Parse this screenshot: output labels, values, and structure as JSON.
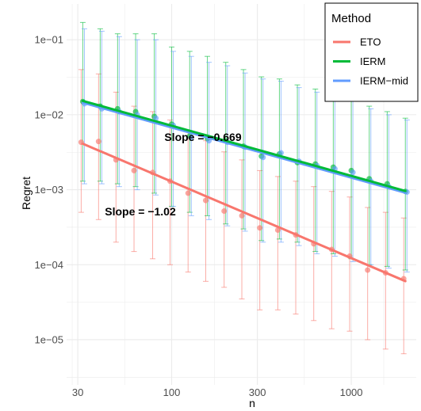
{
  "chart_data": {
    "type": "scatter",
    "xlabel": "n",
    "ylabel": "Regret",
    "x_scale": "log10",
    "y_scale": "log10",
    "xlim": [
      26,
      2300
    ],
    "ylim": [
      2.5e-06,
      0.3
    ],
    "x_ticks": [
      30,
      100,
      300,
      1000
    ],
    "x_tick_labels": [
      "30",
      "100",
      "300",
      "1000"
    ],
    "y_ticks": [
      1e-05,
      0.0001,
      0.001,
      0.01,
      0.1
    ],
    "y_tick_labels": [
      "1e−05",
      "1e−04",
      "1e−03",
      "1e−02",
      "1e−01"
    ],
    "grid": true,
    "legend": {
      "title": "Method",
      "position": "top-right"
    },
    "x": [
      32,
      40,
      50,
      63,
      80,
      100,
      126,
      158,
      200,
      251,
      316,
      398,
      501,
      631,
      794,
      1000,
      1259,
      1585,
      2000
    ],
    "series": [
      {
        "name": "ETO",
        "color": "#F8766D",
        "dodge": -0.009,
        "values": [
          0.0043,
          0.0044,
          0.0025,
          0.0018,
          0.0017,
          0.0013,
          0.0009,
          0.00072,
          0.00052,
          0.00045,
          0.00031,
          0.00029,
          0.00025,
          0.00019,
          0.00016,
          0.00013,
          8.5e-05,
          7.8e-05,
          6.5e-05
        ],
        "upper": [
          0.04,
          0.035,
          0.02,
          0.013,
          0.011,
          0.0085,
          0.006,
          0.0045,
          0.0032,
          0.0025,
          0.0018,
          0.0015,
          0.0013,
          0.0011,
          0.00095,
          0.0008,
          0.00058,
          0.0005,
          0.00042
        ],
        "lower": [
          0.0005,
          0.0004,
          0.0002,
          0.00015,
          0.00012,
          0.0001,
          8e-05,
          6e-05,
          5e-05,
          3.5e-05,
          2.5e-05,
          2.5e-05,
          2.2e-05,
          1.8e-05,
          1.4e-05,
          1.3e-05,
          1e-05,
          7.5e-06,
          6.5e-06
        ],
        "fit": {
          "slope": -1.02,
          "intercept_at_x_32": 0.0041,
          "label": "Slope = −1.02"
        }
      },
      {
        "name": "IERM",
        "color": "#00BA38",
        "dodge": 0.0,
        "values": [
          0.015,
          0.013,
          0.012,
          0.011,
          0.0095,
          0.0075,
          0.0052,
          0.0048,
          0.0045,
          0.0038,
          0.0028,
          0.003,
          0.0023,
          0.0022,
          0.002,
          0.0018,
          0.0014,
          0.0012,
          0.00095
        ],
        "upper": [
          0.17,
          0.14,
          0.12,
          0.12,
          0.12,
          0.08,
          0.07,
          0.06,
          0.05,
          0.04,
          0.032,
          0.03,
          0.025,
          0.022,
          0.02,
          0.018,
          0.013,
          0.011,
          0.009
        ],
        "lower": [
          0.0013,
          0.0013,
          0.0012,
          0.0011,
          0.0009,
          0.0006,
          0.0005,
          0.00045,
          0.00035,
          0.0003,
          0.00021,
          0.00022,
          0.0002,
          0.00015,
          0.00014,
          0.00012,
          0.0001,
          9.5e-05,
          8.5e-05
        ],
        "fit": {
          "slope": -0.669,
          "intercept_at_x_32": 0.0153
        }
      },
      {
        "name": "IERM−mid",
        "color": "#619CFF",
        "dodge": 0.009,
        "values": [
          0.014,
          0.012,
          0.011,
          0.01,
          0.009,
          0.0072,
          0.005,
          0.0045,
          0.0043,
          0.0037,
          0.0027,
          0.0031,
          0.0024,
          0.0021,
          0.0019,
          0.0017,
          0.0013,
          0.0011,
          0.00093
        ],
        "upper": [
          0.14,
          0.13,
          0.11,
          0.1,
          0.1,
          0.07,
          0.06,
          0.05,
          0.045,
          0.036,
          0.03,
          0.028,
          0.023,
          0.02,
          0.018,
          0.016,
          0.012,
          0.01,
          0.0085
        ],
        "lower": [
          0.0012,
          0.0012,
          0.0011,
          0.001,
          0.00085,
          0.0006,
          0.00045,
          0.0004,
          0.00033,
          0.00028,
          0.0002,
          0.0002,
          0.00018,
          0.00014,
          0.00013,
          0.00011,
          0.0001,
          9e-05,
          8e-05
        ],
        "fit": {
          "slope": -0.669,
          "intercept_at_x_32": 0.0145,
          "label": "Slope = −0.669"
        }
      }
    ]
  }
}
